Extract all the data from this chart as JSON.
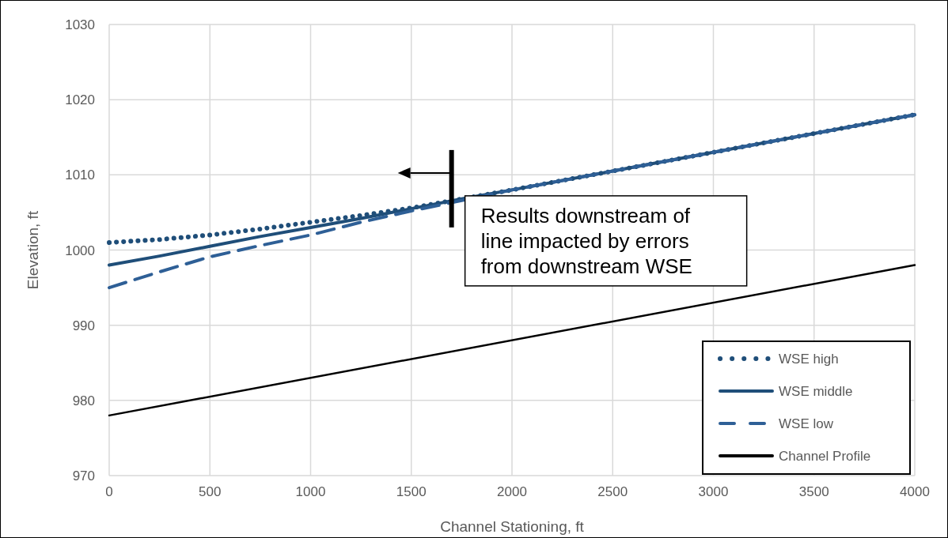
{
  "chart_data": {
    "type": "line",
    "xlabel": "Channel Stationing, ft",
    "ylabel": "Elevation, ft",
    "x": [
      0,
      250,
      500,
      750,
      1000,
      1250,
      1500,
      1750,
      2000,
      2500,
      3000,
      3500,
      4000
    ],
    "series": [
      {
        "name": "WSE high",
        "color": "#1f4e79",
        "line_style": "dotted",
        "values": [
          1001,
          1001.4,
          1002,
          1002.8,
          1003.7,
          1004.6,
          1005.6,
          1006.8,
          1008,
          1010.5,
          1013,
          1015.5,
          1018
        ]
      },
      {
        "name": "WSE middle",
        "color": "#1f4e79",
        "line_style": "solid",
        "values": [
          998,
          999.2,
          1000.5,
          1001.8,
          1003,
          1004.2,
          1005.5,
          1006.8,
          1008,
          1010.5,
          1013,
          1015.5,
          1018
        ]
      },
      {
        "name": "WSE low",
        "color": "#2e5f96",
        "line_style": "dashed",
        "values": [
          995,
          997.1,
          999.1,
          1000.6,
          1002,
          1003.7,
          1005.2,
          1006.6,
          1008,
          1010.5,
          1013,
          1015.5,
          1018
        ]
      },
      {
        "name": "Channel Profile",
        "color": "#000000",
        "line_style": "solid",
        "x": [
          0,
          4000
        ],
        "values": [
          978,
          998
        ]
      }
    ],
    "xlim": [
      0,
      4000
    ],
    "xticks": [
      0,
      500,
      1000,
      1500,
      2000,
      2500,
      3000,
      3500,
      4000
    ],
    "ylim": [
      970,
      1030
    ],
    "yticks": [
      970,
      980,
      990,
      1000,
      1010,
      1020,
      1030
    ],
    "grid": true,
    "legend": "bottom right",
    "marker": "none",
    "annotations": [
      {
        "text": "Results downstream of line impacted by errors from downstream WSE",
        "x": 1700,
        "y": 1007
      }
    ]
  }
}
